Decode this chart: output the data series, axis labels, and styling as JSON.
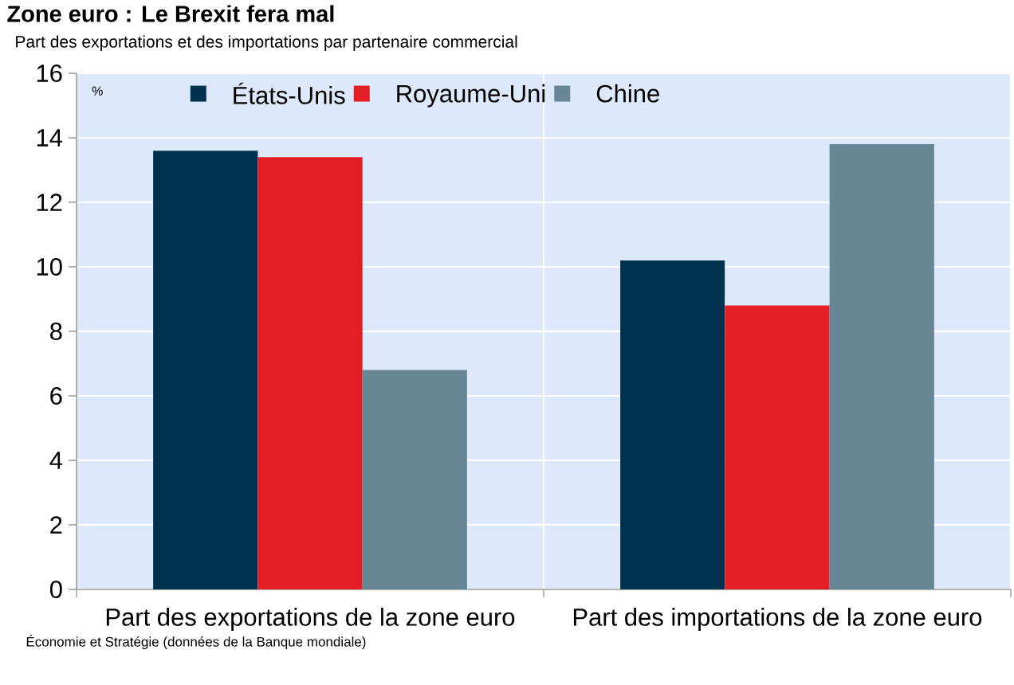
{
  "chart_data": {
    "type": "bar",
    "title": "Zone euro : Le Brexit fera mal",
    "subtitle": "Part des exportations et des importations par partenaire commercial",
    "ylabel": "%",
    "categories": [
      "Part des exportations de la zone euro",
      "Part des importations de la zone euro"
    ],
    "series": [
      {
        "name": "États-Unis",
        "color": "#00314f",
        "values": [
          13.6,
          10.2
        ]
      },
      {
        "name": "Royaume-Uni",
        "color": "#e31e24",
        "values": [
          13.4,
          8.8
        ]
      },
      {
        "name": "Chine",
        "color": "#678796",
        "values": [
          6.8,
          13.8
        ]
      }
    ],
    "ylim": [
      0,
      16
    ],
    "yticks": [
      0,
      2,
      4,
      6,
      8,
      10,
      12,
      14,
      16
    ],
    "grid": true,
    "legend": "top",
    "annotations": [
      "Économie et Stratégie (données de la Banque mondiale)"
    ]
  }
}
